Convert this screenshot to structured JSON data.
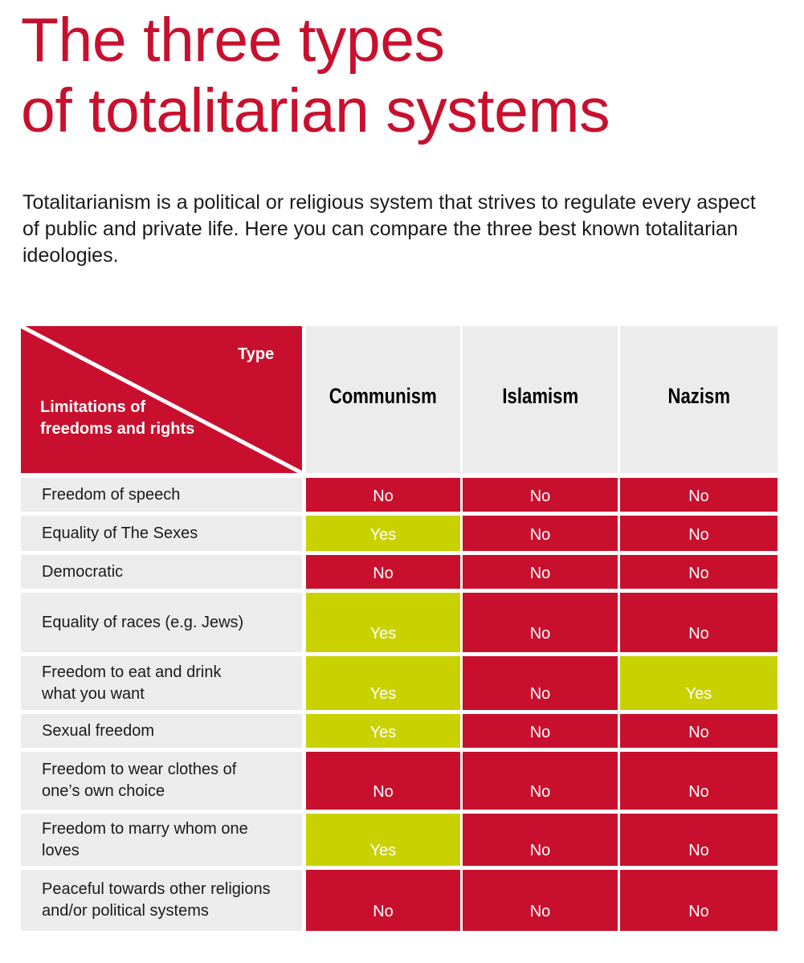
{
  "title_line1": "The three types",
  "title_line2": "of totalitarian systems",
  "intro": "Totalitarianism is a political or religious system that strives to regulate every aspect of public and private life. Here you can compare the three best known totalitarian ideologies.",
  "colors": {
    "red": "#c8102e",
    "green": "#c9d200",
    "grey": "#ececec"
  },
  "table": {
    "corner_type": "Type",
    "corner_limitations": "Limitations of freedoms and rights",
    "columns": [
      "Communism",
      "Islamism",
      "Nazism"
    ],
    "rows": [
      {
        "label": "Freedom of speech",
        "values": [
          "No",
          "No",
          "No"
        ]
      },
      {
        "label": "Equality of The Sexes",
        "values": [
          "Yes",
          "No",
          "No"
        ]
      },
      {
        "label": "Democratic",
        "values": [
          "No",
          "No",
          "No"
        ]
      },
      {
        "label": "Equality of races (e.g. Jews)",
        "values": [
          "Yes",
          "No",
          "No"
        ]
      },
      {
        "label": "Freedom to eat and drink what you want",
        "values": [
          "Yes",
          "No",
          "Yes"
        ]
      },
      {
        "label": "Sexual freedom",
        "values": [
          "Yes",
          "No",
          "No"
        ]
      },
      {
        "label": "Freedom to wear clothes of one’s own choice",
        "values": [
          "No",
          "No",
          "No"
        ]
      },
      {
        "label": "Freedom to marry whom one loves",
        "values": [
          "Yes",
          "No",
          "No"
        ]
      },
      {
        "label": "Peaceful towards other religions and/or political systems",
        "values": [
          "No",
          "No",
          "No"
        ]
      }
    ]
  }
}
